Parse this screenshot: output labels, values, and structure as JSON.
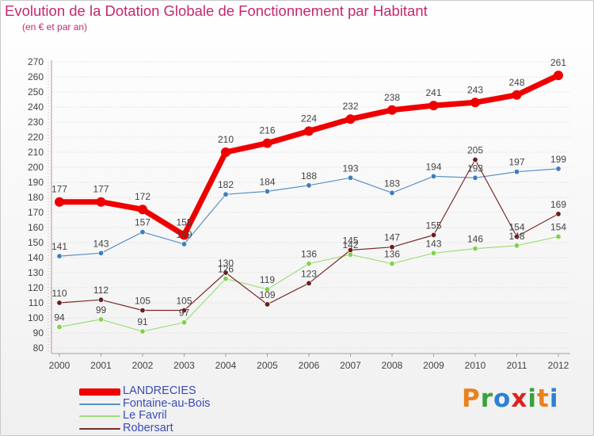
{
  "header": {
    "title": "Evolution de la Dotation Globale de Fonctionnement par Habitant",
    "subtitle": "(en € et par an)"
  },
  "colors": {
    "title": "#c4286f",
    "axis": "#a0a0a0",
    "grid": "#d8d8d8",
    "text": "#444444"
  },
  "logo": {
    "text": "Proxiti",
    "letters": [
      {
        "ch": "P",
        "color": "#e8821e"
      },
      {
        "ch": "r",
        "color": "#3aa13a"
      },
      {
        "ch": "o",
        "color": "#2c7fd4"
      },
      {
        "ch": "x",
        "color": "#e02020"
      },
      {
        "ch": "i",
        "color": "#3aa13a"
      },
      {
        "ch": "t",
        "color": "#e8821e"
      },
      {
        "ch": "i",
        "color": "#2c7fd4"
      }
    ]
  },
  "chart_data": {
    "type": "line",
    "title": "Evolution de la Dotation Globale de Fonctionnement par Habitant",
    "subtitle": "(en € et par an)",
    "xlabel": "",
    "ylabel": "",
    "x": [
      "2000",
      "2001",
      "2002",
      "2003",
      "2004",
      "2005",
      "2006",
      "2007",
      "2008",
      "2009",
      "2010",
      "2011",
      "2012"
    ],
    "ylim": [
      80,
      270
    ],
    "yticks": [
      80,
      90,
      100,
      110,
      120,
      130,
      140,
      150,
      160,
      170,
      180,
      190,
      200,
      210,
      220,
      230,
      240,
      250,
      260,
      270
    ],
    "grid": "horizontal",
    "legend_position": "bottom-left",
    "series": [
      {
        "name": "LANDRECIES",
        "color": "#ee0000",
        "marker": "#ee0000",
        "width": 7,
        "radius": 6,
        "values": [
          177,
          177,
          172,
          155,
          210,
          216,
          224,
          232,
          238,
          241,
          243,
          248,
          261
        ]
      },
      {
        "name": "Fontaine-au-Bois",
        "color": "#5b8fc4",
        "marker": "#3b7ec0",
        "width": 1.2,
        "radius": 3.2,
        "values": [
          141,
          143,
          157,
          149,
          182,
          184,
          188,
          193,
          183,
          194,
          193,
          197,
          199
        ]
      },
      {
        "name": "Le Favril",
        "color": "#9ede7a",
        "marker": "#7fd34a",
        "width": 1.2,
        "radius": 3.2,
        "values": [
          94,
          99,
          91,
          97,
          126,
          119,
          136,
          142,
          136,
          143,
          146,
          148,
          154
        ]
      },
      {
        "name": "Robersart",
        "color": "#7a2b2b",
        "marker": "#6b1c1c",
        "width": 1.2,
        "radius": 3.2,
        "values": [
          110,
          112,
          105,
          105,
          130,
          109,
          123,
          145,
          147,
          155,
          205,
          154,
          169
        ]
      }
    ]
  }
}
